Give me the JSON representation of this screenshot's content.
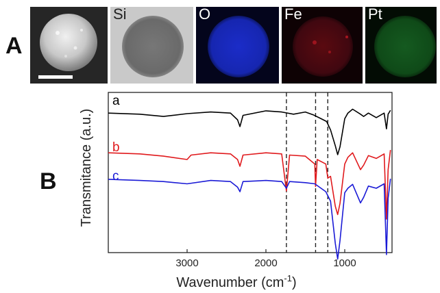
{
  "figure": {
    "panel_a_label": "A",
    "panel_b_label": "B",
    "eds_tiles": [
      {
        "label": "",
        "kind": "sem"
      },
      {
        "label": "Si",
        "kind": "si",
        "color": "#9a9a9a"
      },
      {
        "label": "O",
        "kind": "o",
        "color": "#1c2fd8"
      },
      {
        "label": "Fe",
        "kind": "fe",
        "color": "#a01820"
      },
      {
        "label": "Pt",
        "kind": "pt",
        "color": "#2f9a3a"
      }
    ]
  },
  "chart_data": {
    "type": "line",
    "xlabel": "Wavenumber (cm",
    "xlabel_sup": "-1",
    "xlabel_suffix": ")",
    "ylabel": "Transmitance (a.u.)",
    "xlim": [
      4000,
      400
    ],
    "x_ticks": [
      3000,
      2000,
      1000
    ],
    "reference_lines_x": [
      1740,
      1370,
      1215
    ],
    "series": [
      {
        "name": "a",
        "color": "#000000",
        "offset": 0,
        "points": [
          [
            4000,
            0.1
          ],
          [
            3600,
            0.12
          ],
          [
            3300,
            0.16
          ],
          [
            3000,
            0.11
          ],
          [
            2700,
            0.08
          ],
          [
            2450,
            0.1
          ],
          [
            2360,
            0.22
          ],
          [
            2330,
            0.34
          ],
          [
            2290,
            0.14
          ],
          [
            2000,
            0.06
          ],
          [
            1800,
            0.08
          ],
          [
            1650,
            0.12
          ],
          [
            1500,
            0.08
          ],
          [
            1400,
            0.13
          ],
          [
            1300,
            0.2
          ],
          [
            1230,
            0.25
          ],
          [
            1180,
            0.4
          ],
          [
            1120,
            0.68
          ],
          [
            1090,
            0.84
          ],
          [
            1060,
            0.7
          ],
          [
            1000,
            0.2
          ],
          [
            960,
            0.1
          ],
          [
            900,
            0.03
          ],
          [
            800,
            0.12
          ],
          [
            760,
            0.16
          ],
          [
            700,
            0.1
          ],
          [
            600,
            0.18
          ],
          [
            500,
            0.1
          ],
          [
            470,
            0.38
          ],
          [
            450,
            0.12
          ],
          [
            420,
            0.05
          ]
        ]
      },
      {
        "name": "b",
        "color": "#e0191c",
        "offset": 1,
        "points": [
          [
            4000,
            0.1
          ],
          [
            3600,
            0.12
          ],
          [
            3300,
            0.16
          ],
          [
            3000,
            0.22
          ],
          [
            2950,
            0.14
          ],
          [
            2700,
            0.1
          ],
          [
            2450,
            0.12
          ],
          [
            2360,
            0.22
          ],
          [
            2330,
            0.34
          ],
          [
            2290,
            0.14
          ],
          [
            2000,
            0.1
          ],
          [
            1800,
            0.12
          ],
          [
            1740,
            0.78
          ],
          [
            1700,
            0.14
          ],
          [
            1500,
            0.16
          ],
          [
            1380,
            0.3
          ],
          [
            1370,
            0.7
          ],
          [
            1350,
            0.22
          ],
          [
            1240,
            0.3
          ],
          [
            1215,
            0.55
          ],
          [
            1180,
            0.52
          ],
          [
            1120,
            1.05
          ],
          [
            1090,
            1.2
          ],
          [
            1060,
            1.0
          ],
          [
            1000,
            0.3
          ],
          [
            960,
            0.18
          ],
          [
            900,
            0.1
          ],
          [
            800,
            0.4
          ],
          [
            760,
            0.32
          ],
          [
            700,
            0.15
          ],
          [
            600,
            0.2
          ],
          [
            500,
            0.12
          ],
          [
            470,
            1.28
          ],
          [
            450,
            0.4
          ],
          [
            420,
            0.05
          ]
        ]
      },
      {
        "name": "c",
        "color": "#1a1ad6",
        "offset": 2,
        "points": [
          [
            4000,
            0.06
          ],
          [
            3600,
            0.08
          ],
          [
            3300,
            0.1
          ],
          [
            3000,
            0.14
          ],
          [
            2700,
            0.08
          ],
          [
            2450,
            0.1
          ],
          [
            2360,
            0.2
          ],
          [
            2330,
            0.28
          ],
          [
            2290,
            0.1
          ],
          [
            2000,
            0.08
          ],
          [
            1800,
            0.1
          ],
          [
            1740,
            0.22
          ],
          [
            1700,
            0.1
          ],
          [
            1500,
            0.12
          ],
          [
            1380,
            0.14
          ],
          [
            1240,
            0.28
          ],
          [
            1180,
            0.45
          ],
          [
            1120,
            1.2
          ],
          [
            1090,
            1.48
          ],
          [
            1060,
            1.15
          ],
          [
            1000,
            0.3
          ],
          [
            960,
            0.22
          ],
          [
            900,
            0.15
          ],
          [
            800,
            0.48
          ],
          [
            760,
            0.38
          ],
          [
            700,
            0.18
          ],
          [
            600,
            0.22
          ],
          [
            500,
            0.14
          ],
          [
            470,
            1.4
          ],
          [
            450,
            0.4
          ],
          [
            420,
            0.05
          ]
        ]
      }
    ]
  }
}
